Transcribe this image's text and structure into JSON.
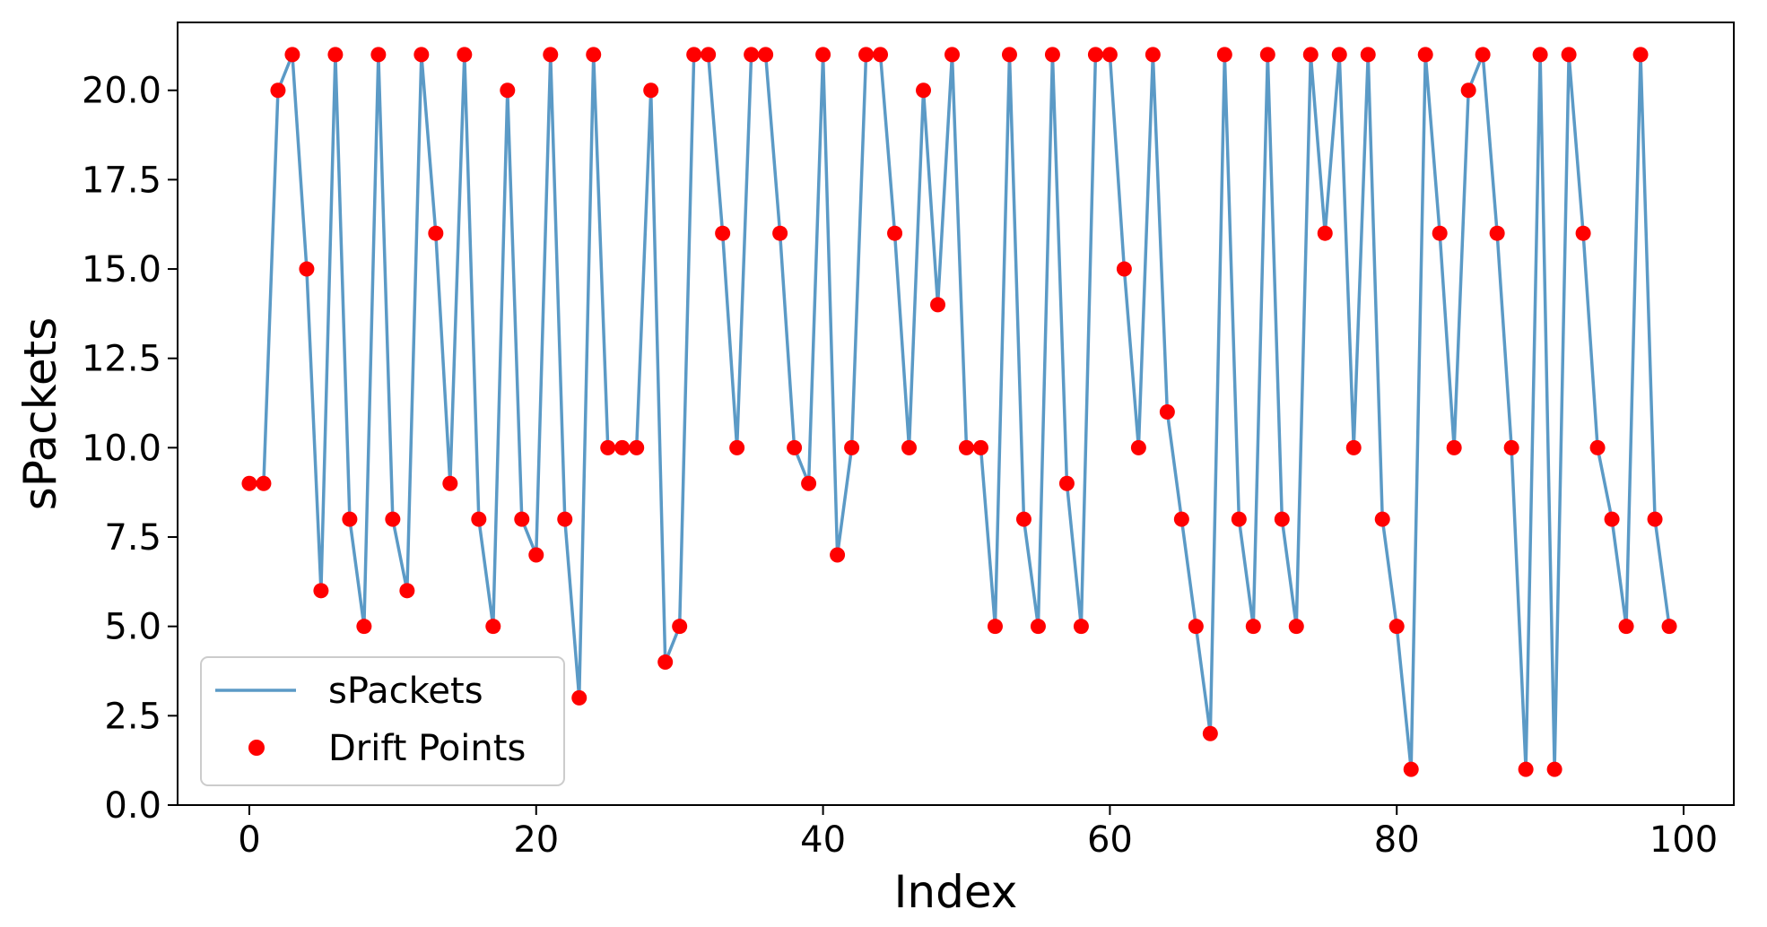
{
  "chart_data": {
    "type": "line",
    "title": "",
    "xlabel": "Index",
    "ylabel": "sPackets",
    "xlim": [
      -5,
      103.5
    ],
    "ylim": [
      0,
      21.9
    ],
    "x_ticks": [
      0,
      20,
      40,
      60,
      80,
      100
    ],
    "x_tick_labels": [
      "0",
      "20",
      "40",
      "60",
      "80",
      "100"
    ],
    "y_ticks": [
      0,
      2.5,
      5,
      7.5,
      10,
      12.5,
      15,
      17.5,
      20
    ],
    "y_tick_labels": [
      "0.0",
      "2.5",
      "5.0",
      "7.5",
      "10.0",
      "12.5",
      "15.0",
      "17.5",
      "20.0"
    ],
    "grid": false,
    "legend_position": "lower-left",
    "x": [
      0,
      1,
      2,
      3,
      4,
      5,
      6,
      7,
      8,
      9,
      10,
      11,
      12,
      13,
      14,
      15,
      16,
      17,
      18,
      19,
      20,
      21,
      22,
      23,
      24,
      25,
      26,
      27,
      28,
      29,
      30,
      31,
      32,
      33,
      34,
      35,
      36,
      37,
      38,
      39,
      40,
      41,
      42,
      43,
      44,
      45,
      46,
      47,
      48,
      49,
      50,
      51,
      52,
      53,
      54,
      55,
      56,
      57,
      58,
      59,
      60,
      61,
      62,
      63,
      64,
      65,
      66,
      67,
      68,
      69,
      70,
      71,
      72,
      73,
      74,
      75,
      76,
      77,
      78,
      79,
      80,
      81,
      82,
      83,
      84,
      85,
      86,
      87,
      88,
      89,
      90,
      91,
      92,
      93,
      94,
      95,
      96,
      97,
      98,
      99
    ],
    "series": [
      {
        "name": "sPackets",
        "kind": "line",
        "color": "#5b9ac6",
        "values": [
          9,
          9,
          20,
          21,
          15,
          6,
          21,
          8,
          5,
          21,
          8,
          6,
          21,
          16,
          9,
          21,
          8,
          5,
          20,
          8,
          7,
          21,
          8,
          3,
          21,
          10,
          10,
          10,
          20,
          4,
          5,
          21,
          21,
          16,
          10,
          21,
          21,
          16,
          10,
          9,
          21,
          7,
          10,
          21,
          21,
          16,
          10,
          20,
          14,
          21,
          10,
          10,
          5,
          21,
          8,
          5,
          21,
          9,
          5,
          21,
          21,
          15,
          10,
          21,
          11,
          8,
          5,
          2,
          21,
          8,
          5,
          21,
          8,
          5,
          21,
          16,
          21,
          10,
          21,
          8,
          5,
          1,
          21,
          16,
          10,
          20,
          21,
          16,
          10,
          1,
          21,
          1,
          21,
          16,
          10,
          8,
          5,
          21,
          8,
          5
        ]
      },
      {
        "name": "Drift Points",
        "kind": "scatter",
        "color": "#ff0000",
        "values": [
          9,
          9,
          20,
          21,
          15,
          6,
          21,
          8,
          5,
          21,
          8,
          6,
          21,
          16,
          9,
          21,
          8,
          5,
          20,
          8,
          7,
          21,
          8,
          3,
          21,
          10,
          10,
          10,
          20,
          4,
          5,
          21,
          21,
          16,
          10,
          21,
          21,
          16,
          10,
          9,
          21,
          7,
          10,
          21,
          21,
          16,
          10,
          20,
          14,
          21,
          10,
          10,
          5,
          21,
          8,
          5,
          21,
          9,
          5,
          21,
          21,
          15,
          10,
          21,
          11,
          8,
          5,
          2,
          21,
          8,
          5,
          21,
          8,
          5,
          21,
          16,
          21,
          10,
          21,
          8,
          5,
          1,
          21,
          16,
          10,
          20,
          21,
          16,
          10,
          1,
          21,
          1,
          21,
          16,
          10,
          8,
          5,
          21,
          8,
          5
        ]
      }
    ]
  }
}
